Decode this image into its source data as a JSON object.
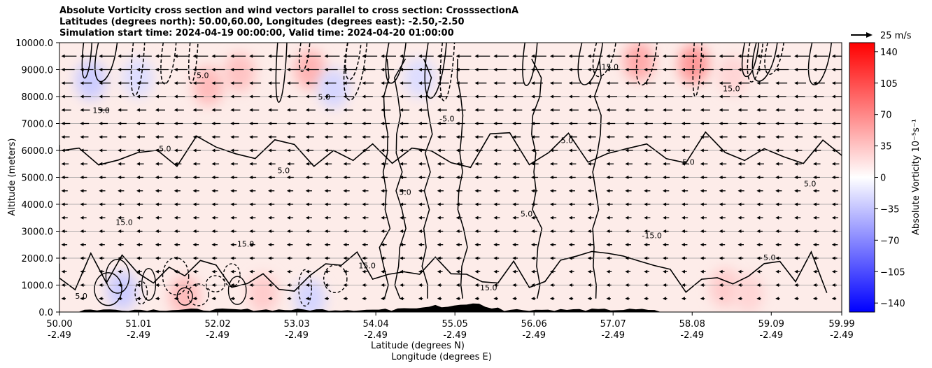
{
  "chart_data": {
    "type": "heatmap",
    "title_lines": [
      "Absolute Vorticity cross section and wind vectors parallel to cross section: CrosssectionA",
      "Latitudes (degrees north): 50.00,60.00, Longitudes (degrees east): -2.50,-2.50",
      "Simulation start time: 2024-04-19 00:00:00, Valid time: 2024-04-20 01:00:00"
    ],
    "xlabel": "Latitude (degrees N)",
    "xlabel2": "Longitude (degrees E)",
    "ylabel": "Altitude (meters)",
    "x_ticks": [
      {
        "lat": "50.00",
        "lon": "-2.49",
        "value": 50.0
      },
      {
        "lat": "51.01",
        "lon": "-2.49",
        "value": 51.01
      },
      {
        "lat": "52.02",
        "lon": "-2.49",
        "value": 52.02
      },
      {
        "lat": "53.03",
        "lon": "-2.49",
        "value": 53.03
      },
      {
        "lat": "54.04",
        "lon": "-2.49",
        "value": 54.04
      },
      {
        "lat": "55.05",
        "lon": "-2.49",
        "value": 55.05
      },
      {
        "lat": "56.06",
        "lon": "-2.49",
        "value": 56.06
      },
      {
        "lat": "57.07",
        "lon": "-2.49",
        "value": 57.07
      },
      {
        "lat": "58.08",
        "lon": "-2.49",
        "value": 58.08
      },
      {
        "lat": "59.09",
        "lon": "-2.49",
        "value": 59.09
      },
      {
        "lat": "59.99",
        "lon": "-2.49",
        "value": 59.99
      }
    ],
    "y_ticks": [
      {
        "label": "0.0",
        "value": 0
      },
      {
        "label": "1000.0",
        "value": 1000
      },
      {
        "label": "2000.0",
        "value": 2000
      },
      {
        "label": "3000.0",
        "value": 3000
      },
      {
        "label": "4000.0",
        "value": 4000
      },
      {
        "label": "5000.0",
        "value": 5000
      },
      {
        "label": "6000.0",
        "value": 6000
      },
      {
        "label": "7000.0",
        "value": 7000
      },
      {
        "label": "8000.0",
        "value": 8000
      },
      {
        "label": "9000.0",
        "value": 9000
      },
      {
        "label": "10000.0",
        "value": 10000
      }
    ],
    "xlim": [
      50.0,
      59.99
    ],
    "ylim": [
      0,
      10000
    ],
    "grid": true,
    "colorbar": {
      "label": "Absolute Vorticity 10⁻⁵s⁻¹",
      "range": [
        -150,
        150
      ],
      "ticks": [
        "140",
        "105",
        "70",
        "35",
        "0",
        "−35",
        "−70",
        "−105",
        "−140"
      ],
      "tick_values": [
        140,
        105,
        70,
        35,
        0,
        -35,
        -70,
        -105,
        -140
      ],
      "colormap": "bwr"
    },
    "quiver_key": {
      "label": "25 m/s",
      "speed": 25
    },
    "vorticity_features": [
      {
        "lat": 51.9,
        "alt": 8400,
        "value": 40
      },
      {
        "lat": 52.3,
        "alt": 8900,
        "value": 35
      },
      {
        "lat": 53.2,
        "alt": 9000,
        "value": 45
      },
      {
        "lat": 53.5,
        "alt": 8300,
        "value": -25
      },
      {
        "lat": 51.0,
        "alt": 8700,
        "value": -20
      },
      {
        "lat": 50.4,
        "alt": 8600,
        "value": -30
      },
      {
        "lat": 54.6,
        "alt": 8700,
        "value": -20
      },
      {
        "lat": 57.4,
        "alt": 9300,
        "value": 50
      },
      {
        "lat": 58.1,
        "alt": 9200,
        "value": 60
      },
      {
        "lat": 58.6,
        "alt": 8800,
        "value": 25
      },
      {
        "lat": 50.8,
        "alt": 800,
        "value": -30
      },
      {
        "lat": 51.6,
        "alt": 600,
        "value": 40
      },
      {
        "lat": 52.6,
        "alt": 700,
        "value": 30
      },
      {
        "lat": 53.2,
        "alt": 500,
        "value": -25
      },
      {
        "lat": 58.5,
        "alt": 900,
        "value": 30
      },
      {
        "lat": 58.8,
        "alt": 700,
        "value": 25
      }
    ],
    "contour_labels": [
      "5.0",
      "15.0",
      "-5.0",
      "5.0",
      "15.0",
      "5.0",
      "5.0",
      "15.0",
      "5.0",
      "-5.0",
      "15.0",
      "5.0",
      "5.0",
      "15.0",
      "-15.0",
      "5.0",
      "15.0",
      "5.0",
      "5.0",
      "15.0"
    ],
    "wind_rows_alt": [
      500,
      1000,
      1500,
      2000,
      2500,
      3000,
      3500,
      4000,
      4500,
      5000,
      5500,
      6000,
      6500,
      7000,
      7500,
      8000,
      8500,
      9000,
      9500
    ],
    "wind_u_by_row": [
      -2,
      -3,
      -4,
      -4,
      -5,
      -5,
      -6,
      -6,
      -6,
      -7,
      -8,
      -9,
      -10,
      -11,
      -13,
      -15,
      -17,
      -20,
      -24
    ]
  }
}
